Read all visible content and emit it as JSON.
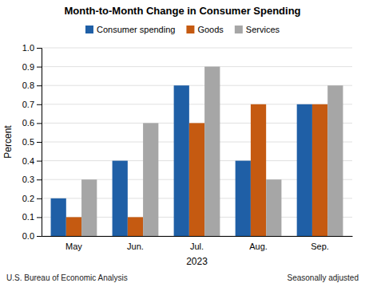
{
  "chart_data": {
    "type": "bar",
    "title": "Month-to-Month Change in Consumer Spending",
    "xlabel": "2023",
    "ylabel": "Percent",
    "categories": [
      "May",
      "Jun.",
      "Jul.",
      "Aug.",
      "Sep."
    ],
    "series": [
      {
        "name": "Consumer spending",
        "color": "#1f5fa6",
        "values": [
          0.2,
          0.4,
          0.8,
          0.4,
          0.7
        ]
      },
      {
        "name": "Goods",
        "color": "#c55a11",
        "values": [
          0.1,
          0.1,
          0.6,
          0.7,
          0.7
        ]
      },
      {
        "name": "Services",
        "color": "#a6a6a6",
        "values": [
          0.3,
          0.6,
          0.9,
          0.3,
          0.8
        ]
      }
    ],
    "ylim": [
      0.0,
      1.0
    ],
    "yticks": [
      {
        "value": 0.0,
        "label": "0.0"
      },
      0.1,
      0.2,
      0.3,
      0.4,
      0.5,
      0.6,
      0.7,
      0.8,
      0.9,
      {
        "value": 1.0,
        "label": "1.0"
      }
    ],
    "grid": true,
    "legend": "top",
    "annotations": [
      "U.S. Bureau of Economic Analysis",
      "Seasonally adjusted"
    ]
  }
}
